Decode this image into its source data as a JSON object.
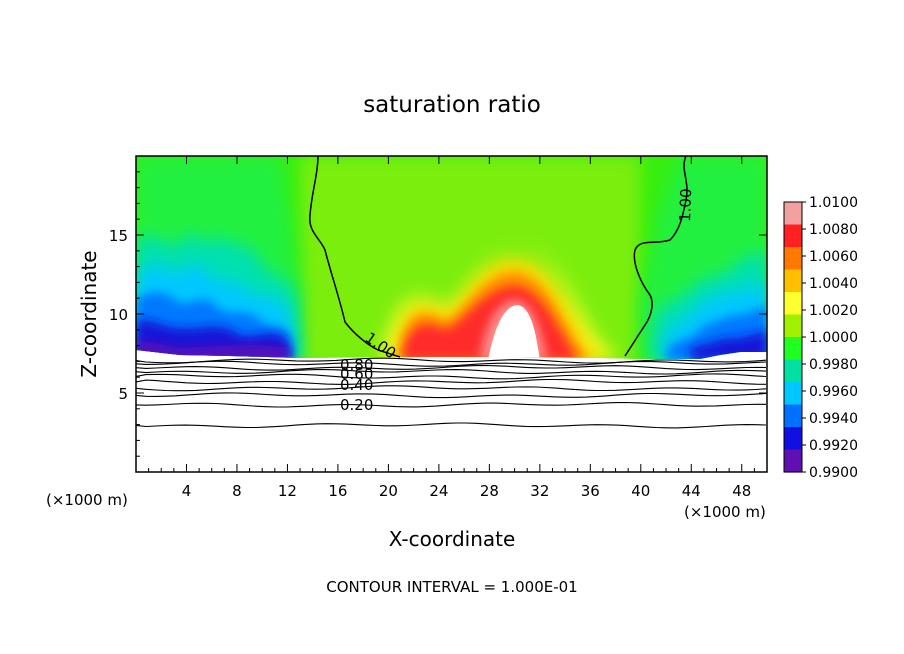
{
  "chart_data": {
    "type": "heatmap",
    "title": "saturation ratio",
    "xlabel": "X-coordinate",
    "ylabel": "Z-coordinate",
    "x_unit": "(×1000 m)",
    "z_unit": "(×1000 m)",
    "xlim": [
      0,
      50
    ],
    "ylim": [
      0,
      20
    ],
    "x_ticks": [
      4,
      8,
      12,
      16,
      20,
      24,
      28,
      32,
      36,
      40,
      44,
      48
    ],
    "y_ticks": [
      5,
      10,
      15
    ],
    "footer": "CONTOUR INTERVAL = 1.000E-01",
    "colorbar": {
      "min": 0.99,
      "max": 1.01,
      "labels": [
        "1.0100",
        "1.0080",
        "1.0060",
        "1.0040",
        "1.0020",
        "1.0000",
        "0.9980",
        "0.9960",
        "0.9940",
        "0.9920",
        "0.9900"
      ],
      "colors": [
        "#f2a0a0",
        "#ff2020",
        "#ff7800",
        "#ffc000",
        "#ffff30",
        "#a0f000",
        "#20ff20",
        "#00e0a0",
        "#00c8ff",
        "#0070ff",
        "#1010e0",
        "#6010b0"
      ]
    },
    "field_description_regions": [
      {
        "x": [
          0,
          14
        ],
        "z_range": [
          7.2,
          13
        ],
        "value_low": 0.992,
        "value_high": 0.998
      },
      {
        "x": [
          15,
          40
        ],
        "z_range": [
          7.2,
          20
        ],
        "value": 1.0
      },
      {
        "x": [
          20,
          24
        ],
        "z_range": [
          7.3,
          10
        ],
        "value": 1.007
      },
      {
        "x": [
          26,
          33
        ],
        "z_range": [
          7.3,
          13
        ],
        "value": 1.01
      },
      {
        "x": [
          42,
          50
        ],
        "z_range": [
          7.2,
          13
        ],
        "value_low": 0.993,
        "value_high": 0.998
      }
    ],
    "contour_labels": [
      "1.00",
      "1.00",
      "0.80",
      "0.60",
      "0.40",
      "0.20"
    ],
    "contour_levels": [
      {
        "level": 1.0,
        "z": 7.05
      },
      {
        "level": 0.9,
        "z": 6.85
      },
      {
        "level": 0.8,
        "z": 6.6
      },
      {
        "level": 0.7,
        "z": 6.35
      },
      {
        "level": 0.6,
        "z": 6.05
      },
      {
        "level": 0.5,
        "z": 5.7
      },
      {
        "level": 0.4,
        "z": 5.3
      },
      {
        "level": 0.3,
        "z": 4.85
      },
      {
        "level": 0.2,
        "z": 4.25
      },
      {
        "level": 0.1,
        "z": 2.95
      }
    ]
  }
}
